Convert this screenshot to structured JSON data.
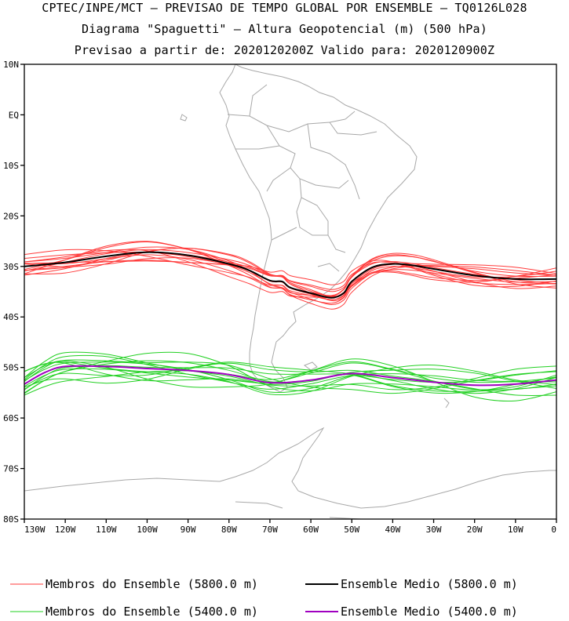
{
  "title": {
    "line1": "CPTEC/INPE/MCT — PREVISAO DE TEMPO GLOBAL POR ENSEMBLE — TQ0126L028",
    "line2": "Diagrama \"Spaguetti\" — Altura Geopotencial (m) (500 hPa)",
    "line3": "Previsao a partir de: 2020120200Z  Valido para: 2020120900Z"
  },
  "axes": {
    "lat_ticks": [
      "10N",
      "EQ",
      "10S",
      "20S",
      "30S",
      "40S",
      "50S",
      "60S",
      "70S",
      "80S"
    ],
    "lon_ticks": [
      "130W",
      "120W",
      "110W",
      "100W",
      "90W",
      "80W",
      "70W",
      "60W",
      "50W",
      "40W",
      "30W",
      "20W",
      "10W",
      "0"
    ]
  },
  "colors": {
    "member_5800": "#ff3a3a",
    "mean_5800": "#000000",
    "member_5400": "#22d022",
    "mean_5400": "#a000c0",
    "coast": "#a8a8a8"
  },
  "legend": [
    {
      "label": "Membros do Ensemble (5800.0 m)",
      "color": "#ff3a3a"
    },
    {
      "label": "Ensemble Medio (5800.0 m)",
      "color": "#000000"
    },
    {
      "label": "Membros do Ensemble (5400.0 m)",
      "color": "#22d022"
    },
    {
      "label": "Ensemble Medio (5400.0 m)",
      "color": "#a000c0"
    }
  ],
  "chart_data": {
    "type": "line",
    "xlim": [
      -130,
      0
    ],
    "ylim": [
      -80,
      10
    ],
    "series": [
      {
        "name": "Ensemble Medio (5800.0 m)",
        "x": [
          -130,
          -120,
          -110,
          -100,
          -90,
          -80,
          -75,
          -70,
          -67,
          -65,
          -60,
          -55,
          -52,
          -50,
          -45,
          -40,
          -35,
          -30,
          -20,
          -10,
          0
        ],
        "y": [
          -30,
          -29.2,
          -28.0,
          -27.2,
          -27.8,
          -29.5,
          -30.8,
          -32.8,
          -33.0,
          -34.2,
          -35.3,
          -36.2,
          -35.3,
          -33.0,
          -30.2,
          -29.5,
          -29.8,
          -30.5,
          -31.8,
          -32.5,
          -32.5
        ]
      },
      {
        "name": "Ensemble Medio (5400.0 m)",
        "x": [
          -130,
          -125,
          -120,
          -110,
          -100,
          -90,
          -80,
          -70,
          -60,
          -50,
          -40,
          -30,
          -20,
          -10,
          0
        ],
        "y": [
          -53.3,
          -51.0,
          -49.8,
          -49.8,
          -50.2,
          -50.6,
          -51.4,
          -53.0,
          -52.5,
          -51.2,
          -52.0,
          -52.9,
          -53.5,
          -53.3,
          -52.5
        ]
      }
    ]
  }
}
